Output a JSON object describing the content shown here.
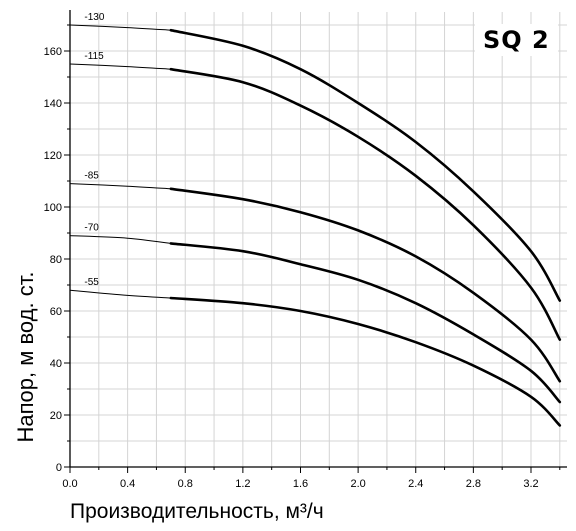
{
  "chart_data": {
    "type": "line",
    "title": "SQ 2",
    "xlabel": "Производительность, м³/ч",
    "ylabel": "Напор, м вод. ст.",
    "xlim": [
      0,
      3.4
    ],
    "ylim": [
      0,
      170
    ],
    "x_ticks": [
      "0.0",
      "0.4",
      "0.8",
      "1.2",
      "1.6",
      "2.0",
      "2.4",
      "2.8",
      "3.2"
    ],
    "y_ticks": [
      "0",
      "20",
      "40",
      "60",
      "80",
      "100",
      "120",
      "140",
      "160"
    ],
    "grid": true,
    "recommended_range_start": 0.7,
    "series": [
      {
        "name": "-130",
        "x": [
          0,
          0.4,
          0.7,
          1.2,
          1.6,
          2.0,
          2.4,
          2.8,
          3.2,
          3.4
        ],
        "y": [
          170,
          169,
          168,
          162,
          153,
          140,
          125,
          106,
          83,
          64
        ]
      },
      {
        "name": "-115",
        "x": [
          0,
          0.4,
          0.7,
          1.2,
          1.6,
          2.0,
          2.4,
          2.8,
          3.2,
          3.4
        ],
        "y": [
          155,
          154,
          153,
          148,
          139,
          127,
          112,
          93,
          69,
          49
        ]
      },
      {
        "name": "-85",
        "x": [
          0,
          0.4,
          0.7,
          1.2,
          1.6,
          2.0,
          2.4,
          2.8,
          3.2,
          3.4
        ],
        "y": [
          109,
          108,
          107,
          103,
          98,
          91,
          81,
          67,
          49,
          33
        ]
      },
      {
        "name": "-70",
        "x": [
          0,
          0.4,
          0.7,
          1.2,
          1.6,
          2.0,
          2.4,
          2.8,
          3.2,
          3.4
        ],
        "y": [
          89,
          88,
          86,
          83,
          78,
          72,
          63,
          51,
          37,
          25
        ]
      },
      {
        "name": "-55",
        "x": [
          0,
          0.4,
          0.7,
          1.2,
          1.6,
          2.0,
          2.4,
          2.8,
          3.2,
          3.4
        ],
        "y": [
          68,
          66,
          65,
          63,
          60,
          55,
          48,
          39,
          27,
          16
        ]
      }
    ]
  }
}
